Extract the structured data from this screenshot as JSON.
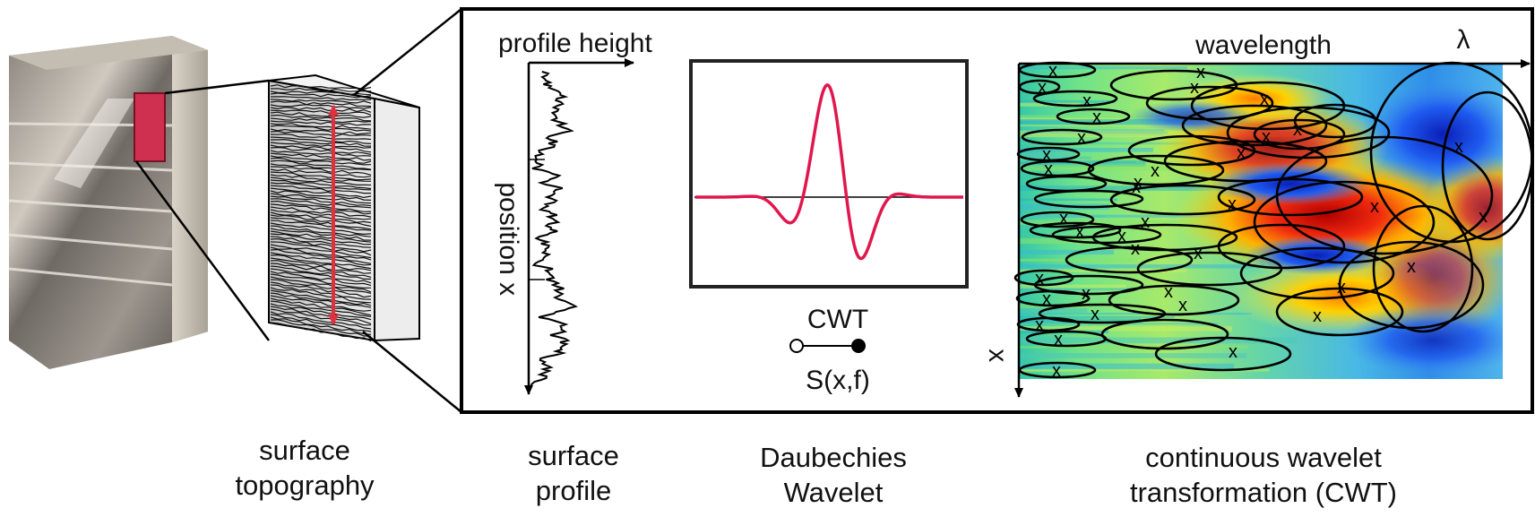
{
  "captions": {
    "surface_topography": [
      "surface",
      "topography"
    ],
    "surface_profile": [
      "surface",
      "profile"
    ],
    "daubechies_wavelet": [
      "Daubechies",
      "Wavelet"
    ],
    "cwt": [
      "continuous wavelet",
      "transformation (CWT)"
    ]
  },
  "profile_panel": {
    "x_axis_label": "profile height",
    "y_axis_label": "position x"
  },
  "wavelet_panel": {
    "operator_label": "CWT",
    "result_label": "S(x,f)"
  },
  "cwt_panel": {
    "x_axis_label": "wavelength",
    "x_axis_symbol": "λ",
    "y_axis_label": "x",
    "marker": "x"
  },
  "colors": {
    "wavelet_curve": "#e0174d",
    "measurement_arrow": "#e03040",
    "highlight_patch": "#d0304f",
    "frame": "#000000"
  },
  "icons": [
    "aluminium-block-photo",
    "surface-slice-3d"
  ]
}
